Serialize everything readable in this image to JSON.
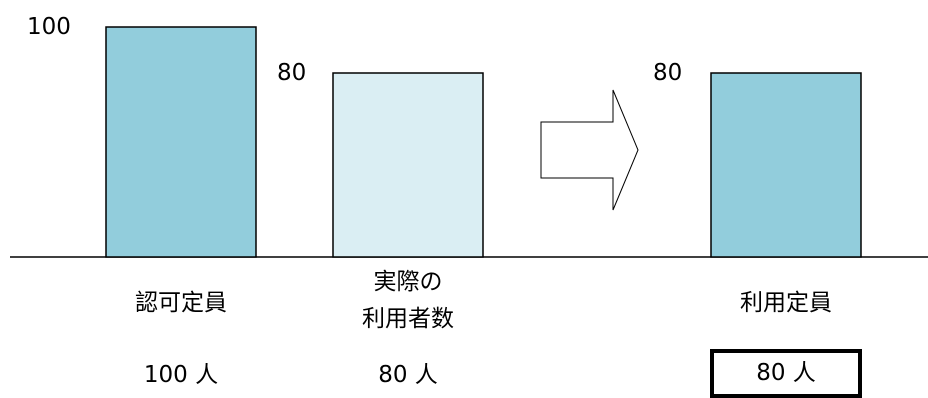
{
  "chart_data": {
    "type": "bar",
    "colors": {
      "bar_dark": "#92cddc",
      "bar_light": "#daeef3",
      "stroke": "#000000"
    },
    "before": {
      "bars": [
        {
          "value": 100,
          "value_label": "100",
          "category_lines": [
            "認可定員"
          ],
          "count_label": "100 人",
          "fill": "bar_dark"
        },
        {
          "value": 80,
          "value_label": "80",
          "category_lines": [
            "実際の",
            "利用者数"
          ],
          "count_label": "80 人",
          "fill": "bar_light"
        }
      ]
    },
    "after": {
      "bars": [
        {
          "value": 80,
          "value_label": "80",
          "category_lines": [
            "利用定員"
          ],
          "count_label": "80 人",
          "fill": "bar_dark",
          "count_boxed": true
        }
      ]
    },
    "arrow_icon": "right-arrow-icon",
    "ylim": [
      0,
      100
    ]
  }
}
